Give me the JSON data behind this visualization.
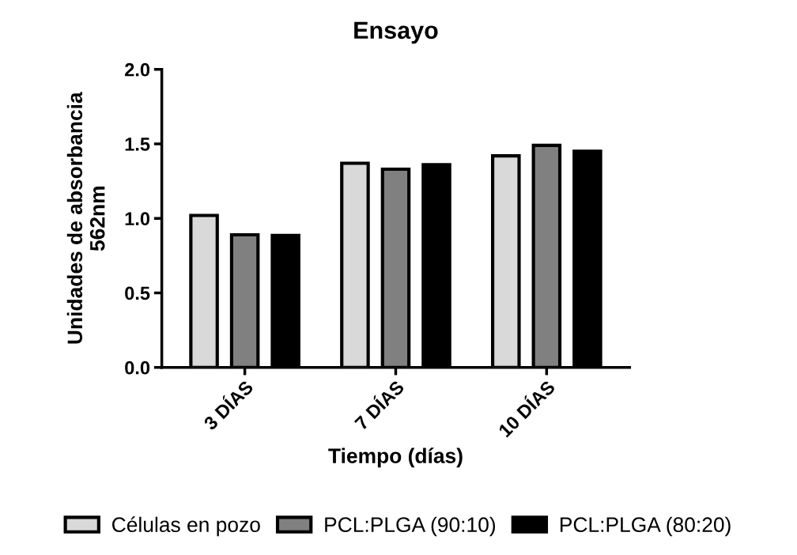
{
  "chart_data": {
    "type": "bar",
    "title": "Ensayo",
    "xlabel": "Tiempo (días)",
    "ylabel": "Unidades de absorbancia\n562nm",
    "categories": [
      "3 DÍAS",
      "7 DÍAS",
      "10 DÍAS"
    ],
    "series": [
      {
        "name": "Células en pozo",
        "color": "#d9d9d9",
        "values": [
          1.02,
          1.37,
          1.42
        ]
      },
      {
        "name": "PCL:PLGA (90:10)",
        "color": "#808080",
        "values": [
          0.89,
          1.33,
          1.49
        ]
      },
      {
        "name": "PCL:PLGA (80:20)",
        "color": "#000000",
        "values": [
          0.886,
          1.36,
          1.45
        ]
      }
    ],
    "ylim": [
      0,
      2.0
    ],
    "yticks": [
      {
        "value": 0,
        "label": "0.0"
      },
      {
        "value": 0.5,
        "label": "0.5"
      },
      {
        "value": 1.0,
        "label": "1.0"
      },
      {
        "value": 1.5,
        "label": "1.5"
      },
      {
        "value": 2.0,
        "label": "2.0"
      }
    ],
    "grid": false,
    "legend": "bottom"
  }
}
